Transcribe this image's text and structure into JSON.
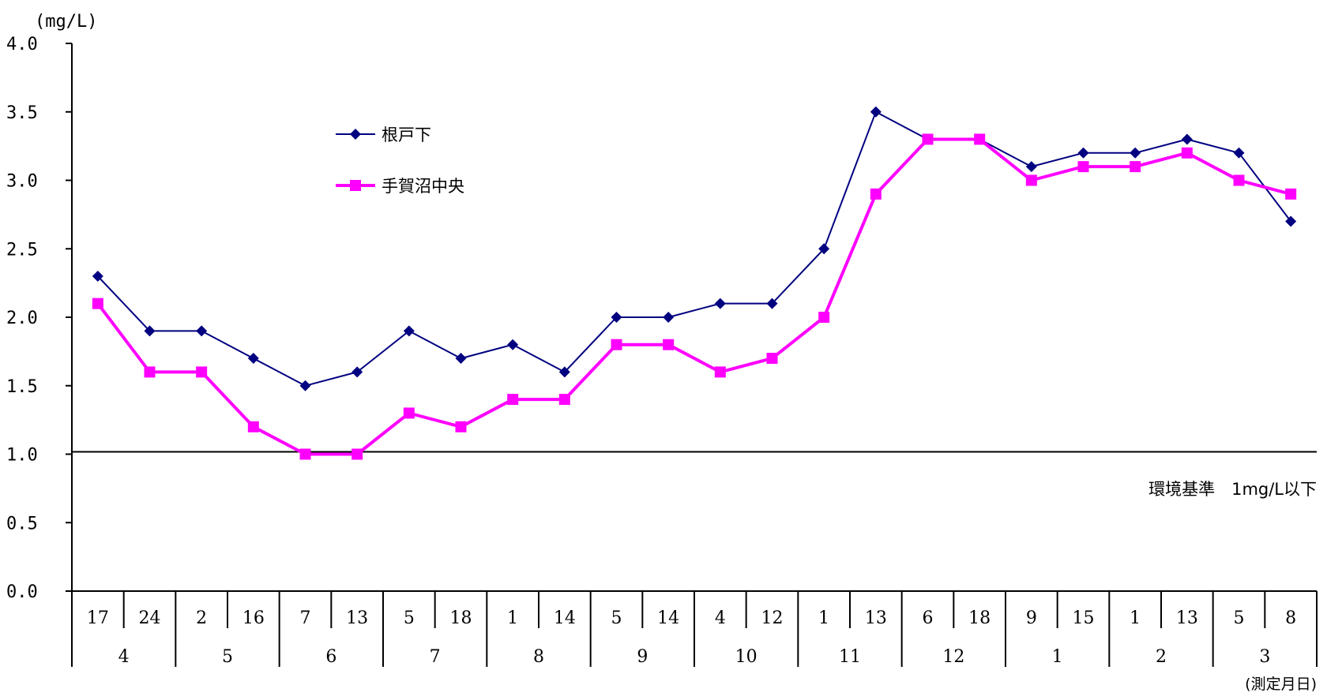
{
  "chart_data": {
    "type": "line",
    "ylabel": "(mg/L)",
    "xlabel": "(測定月日)",
    "ylim": [
      0,
      4.0
    ],
    "yticks": [
      "0.0",
      "0.5",
      "1.0",
      "1.5",
      "2.0",
      "2.5",
      "3.0",
      "3.5",
      "4.0"
    ],
    "days": [
      "17",
      "24",
      "2",
      "16",
      "7",
      "13",
      "5",
      "18",
      "1",
      "14",
      "5",
      "14",
      "4",
      "12",
      "1",
      "13",
      "6",
      "18",
      "9",
      "15",
      "1",
      "13",
      "5",
      "8"
    ],
    "months": [
      "4",
      "5",
      "6",
      "7",
      "8",
      "9",
      "10",
      "11",
      "12",
      "1",
      "2",
      "3"
    ],
    "series": [
      {
        "name": "根戸下",
        "color": "#000080",
        "marker": "diamond",
        "values": [
          2.3,
          1.9,
          1.9,
          1.7,
          1.5,
          1.6,
          1.9,
          1.7,
          1.8,
          1.6,
          2.0,
          2.0,
          2.1,
          2.1,
          2.5,
          3.5,
          3.3,
          3.3,
          3.1,
          3.2,
          3.2,
          3.3,
          3.2,
          2.7
        ]
      },
      {
        "name": "手賀沼中央",
        "color": "#FF00FF",
        "marker": "square",
        "values": [
          2.1,
          1.6,
          1.6,
          1.2,
          1.0,
          1.0,
          1.3,
          1.2,
          1.4,
          1.4,
          1.8,
          1.8,
          1.6,
          1.7,
          2.0,
          2.9,
          3.3,
          3.3,
          3.0,
          3.1,
          3.1,
          3.2,
          3.0,
          2.9
        ]
      }
    ],
    "reference_line": {
      "value": 1.0,
      "label": "環境基準　1mg/L以下"
    },
    "legend_position": "top-left",
    "grid": false
  }
}
